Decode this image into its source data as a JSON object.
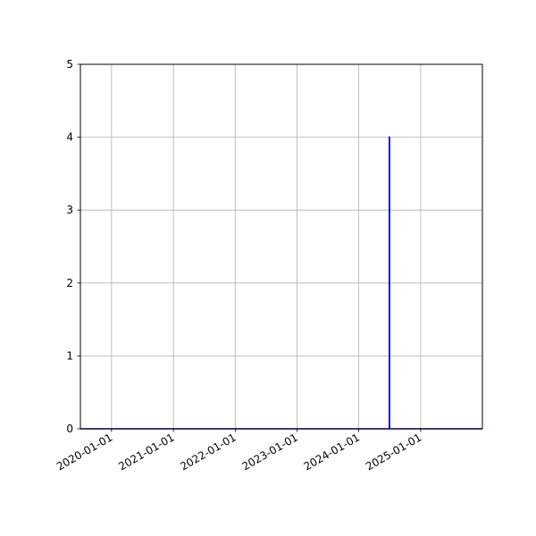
{
  "chart_data": {
    "type": "line",
    "x_type": "date",
    "xlim": [
      "2019-07-01",
      "2025-12-31"
    ],
    "ylim": [
      0,
      5
    ],
    "x_ticks": [
      "2020-01-01",
      "2021-01-01",
      "2022-01-01",
      "2023-01-01",
      "2024-01-01",
      "2025-01-01"
    ],
    "y_ticks": [
      0,
      1,
      2,
      3,
      4,
      5
    ],
    "y_tick_labels": [
      "0",
      "1",
      "2",
      "3",
      "4",
      "5"
    ],
    "grid": true,
    "series": [
      {
        "color": "#0000cc",
        "points": [
          {
            "x": "2019-07-01",
            "y": 0
          },
          {
            "x": "2024-06-30",
            "y": 0
          },
          {
            "x": "2024-06-30",
            "y": 4
          },
          {
            "x": "2024-07-01",
            "y": 4
          },
          {
            "x": "2024-07-01",
            "y": 0
          },
          {
            "x": "2025-12-31",
            "y": 0
          }
        ]
      }
    ]
  }
}
